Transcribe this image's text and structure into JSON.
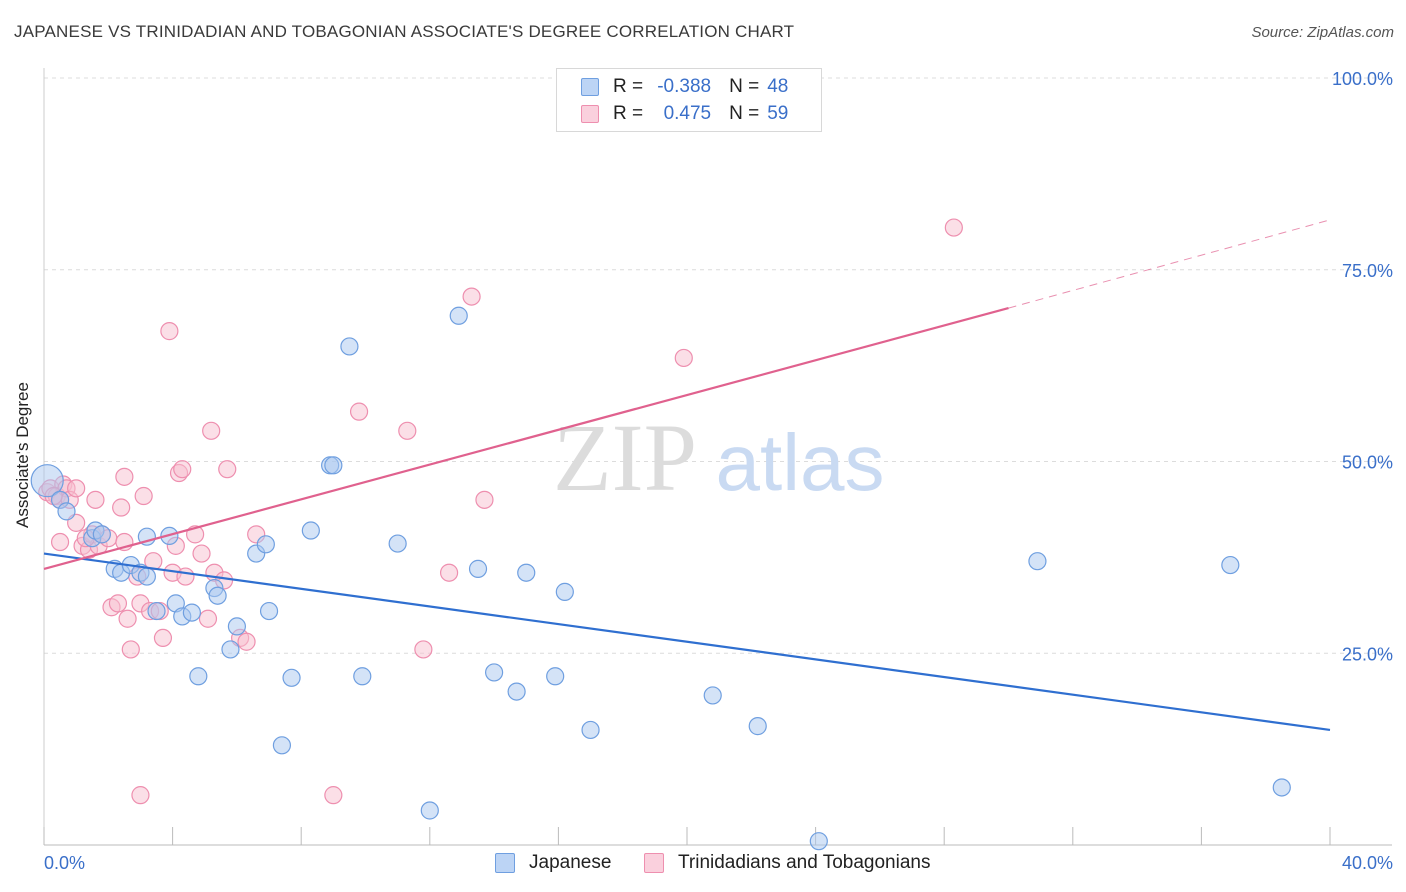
{
  "header": {
    "title": "JAPANESE VS TRINIDADIAN AND TOBAGONIAN ASSOCIATE'S DEGREE CORRELATION CHART",
    "source": "Source: ZipAtlas.com"
  },
  "watermark": {
    "zip": "ZIP",
    "atlas": "atlas"
  },
  "legend_top": {
    "rows": [
      {
        "r_label": "R =",
        "r_value": "-0.388",
        "n_label": "N =",
        "n_value": "48"
      },
      {
        "r_label": "R =",
        "r_value": "0.475",
        "n_label": "N =",
        "n_value": "59"
      }
    ]
  },
  "legend_bottom": {
    "items": [
      {
        "label": "Japanese"
      },
      {
        "label": "Trinidadians and Tobagonians"
      }
    ]
  },
  "colors": {
    "blue_fill": "#aac8f0",
    "blue_stroke": "#6f9fe0",
    "blue_line": "#2f6fd0",
    "pink_fill": "#f7bfd0",
    "pink_stroke": "#ee8faf",
    "pink_line": "#e0618e",
    "axis_text": "#3a6fc9",
    "grid": "#dcdcdc"
  },
  "chart_data": {
    "type": "scatter",
    "title": "JAPANESE VS TRINIDADIAN AND TOBAGONIAN ASSOCIATE'S DEGREE CORRELATION CHART",
    "xlabel": "",
    "ylabel": "Associate's Degree",
    "xlim": [
      0,
      40
    ],
    "ylim": [
      0,
      100
    ],
    "x_tick_labels": [
      "0.0%",
      "40.0%"
    ],
    "y_tick_labels": [
      "100.0%",
      "75.0%",
      "50.0%",
      "25.0%"
    ],
    "y_ticks": [
      100,
      75,
      50,
      25
    ],
    "grid": true,
    "legend_position": "bottom",
    "series": [
      {
        "name": "Japanese",
        "points": [
          [
            0.1,
            47.5
          ],
          [
            0.5,
            45.0
          ],
          [
            0.7,
            43.5
          ],
          [
            1.5,
            40.0
          ],
          [
            1.6,
            41.0
          ],
          [
            1.8,
            40.5
          ],
          [
            2.2,
            36.0
          ],
          [
            2.4,
            35.5
          ],
          [
            2.7,
            36.5
          ],
          [
            3.0,
            35.5
          ],
          [
            3.2,
            40.2
          ],
          [
            3.5,
            30.5
          ],
          [
            3.9,
            40.3
          ],
          [
            4.1,
            31.5
          ],
          [
            4.3,
            29.8
          ],
          [
            4.6,
            30.3
          ],
          [
            4.8,
            22.0
          ],
          [
            5.3,
            33.5
          ],
          [
            5.4,
            32.5
          ],
          [
            5.8,
            25.5
          ],
          [
            6.0,
            28.5
          ],
          [
            6.6,
            38.0
          ],
          [
            6.9,
            39.2
          ],
          [
            7.0,
            30.5
          ],
          [
            7.4,
            13.0
          ],
          [
            7.7,
            21.8
          ],
          [
            8.3,
            41.0
          ],
          [
            8.9,
            49.5
          ],
          [
            9.0,
            49.5
          ],
          [
            9.5,
            65.0
          ],
          [
            9.9,
            22.0
          ],
          [
            11.0,
            39.3
          ],
          [
            12.0,
            4.5
          ],
          [
            12.9,
            69.0
          ],
          [
            13.5,
            36.0
          ],
          [
            14.0,
            22.5
          ],
          [
            14.7,
            20.0
          ],
          [
            15.0,
            35.5
          ],
          [
            15.9,
            22.0
          ],
          [
            16.2,
            33.0
          ],
          [
            17.0,
            15.0
          ],
          [
            20.8,
            19.5
          ],
          [
            22.2,
            15.5
          ],
          [
            30.9,
            37.0
          ],
          [
            36.9,
            36.5
          ],
          [
            38.5,
            7.5
          ],
          [
            24.1,
            0.5
          ],
          [
            3.2,
            35.0
          ]
        ]
      },
      {
        "name": "Trinidadians and Tobagonians",
        "points": [
          [
            0.1,
            46.0
          ],
          [
            0.2,
            46.5
          ],
          [
            0.4,
            45.5
          ],
          [
            0.5,
            45.0
          ],
          [
            0.5,
            39.5
          ],
          [
            0.6,
            47.0
          ],
          [
            0.7,
            46.5
          ],
          [
            0.8,
            45.0
          ],
          [
            1.0,
            46.5
          ],
          [
            1.0,
            42.0
          ],
          [
            1.2,
            39.0
          ],
          [
            1.4,
            38.5
          ],
          [
            1.5,
            40.5
          ],
          [
            1.6,
            45.0
          ],
          [
            1.7,
            39.0
          ],
          [
            1.8,
            40.5
          ],
          [
            2.0,
            40.0
          ],
          [
            2.1,
            31.0
          ],
          [
            2.3,
            31.5
          ],
          [
            2.4,
            44.0
          ],
          [
            2.5,
            48.0
          ],
          [
            2.5,
            39.5
          ],
          [
            2.6,
            29.5
          ],
          [
            2.7,
            25.5
          ],
          [
            2.9,
            35.0
          ],
          [
            3.0,
            31.5
          ],
          [
            3.1,
            45.5
          ],
          [
            3.3,
            30.5
          ],
          [
            3.4,
            37.0
          ],
          [
            3.6,
            30.5
          ],
          [
            3.7,
            27.0
          ],
          [
            3.9,
            67.0
          ],
          [
            4.0,
            35.5
          ],
          [
            4.1,
            39.0
          ],
          [
            4.2,
            48.5
          ],
          [
            4.3,
            49.0
          ],
          [
            4.4,
            35.0
          ],
          [
            4.7,
            40.5
          ],
          [
            4.9,
            38.0
          ],
          [
            5.1,
            29.5
          ],
          [
            5.2,
            54.0
          ],
          [
            5.3,
            35.5
          ],
          [
            5.6,
            34.5
          ],
          [
            5.7,
            49.0
          ],
          [
            6.1,
            27.0
          ],
          [
            6.3,
            26.5
          ],
          [
            6.6,
            40.5
          ],
          [
            9.0,
            6.5
          ],
          [
            9.8,
            56.5
          ],
          [
            11.3,
            54.0
          ],
          [
            11.8,
            25.5
          ],
          [
            12.6,
            35.5
          ],
          [
            13.3,
            71.5
          ],
          [
            13.7,
            45.0
          ],
          [
            19.9,
            63.5
          ],
          [
            28.3,
            80.5
          ],
          [
            3.0,
            6.5
          ],
          [
            1.3,
            40.0
          ],
          [
            0.3,
            45.5
          ]
        ]
      }
    ],
    "trendlines": [
      {
        "series": "Japanese",
        "x": [
          0,
          40
        ],
        "y": [
          38.0,
          15.0
        ],
        "style": "solid"
      },
      {
        "series": "Trinidadians and Tobagonians",
        "x": [
          0,
          30
        ],
        "y": [
          36.0,
          70.0
        ],
        "style": "solid"
      },
      {
        "series": "Trinidadians and Tobagonians",
        "x": [
          30,
          40
        ],
        "y": [
          70.0,
          81.5
        ],
        "style": "dashed"
      }
    ]
  }
}
